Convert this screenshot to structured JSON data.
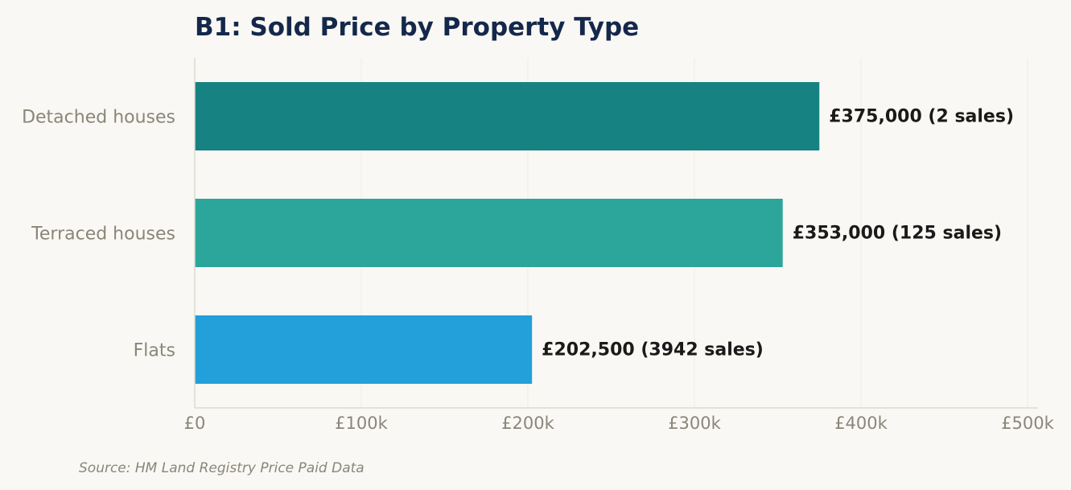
{
  "chart_data": {
    "type": "bar",
    "orientation": "horizontal",
    "title": "B1: Sold Price by Property Type",
    "categories": [
      "Detached houses",
      "Terraced houses",
      "Flats"
    ],
    "values": [
      375000,
      353000,
      202500
    ],
    "value_labels": [
      "£375,000  (2 sales)",
      "£353,000  (125 sales)",
      "£202,500  (3942 sales)"
    ],
    "bar_colors": [
      "#178282",
      "#2ca59b",
      "#239fd9"
    ],
    "xlim": [
      0,
      500000
    ],
    "x_ticks": [
      0,
      100000,
      200000,
      300000,
      400000,
      500000
    ],
    "x_tick_labels": [
      "£0",
      "£100k",
      "£200k",
      "£300k",
      "£400k",
      "£500k"
    ],
    "grid": true,
    "xlabel": "",
    "ylabel": ""
  },
  "source": "Source: HM Land Registry Price Paid Data"
}
